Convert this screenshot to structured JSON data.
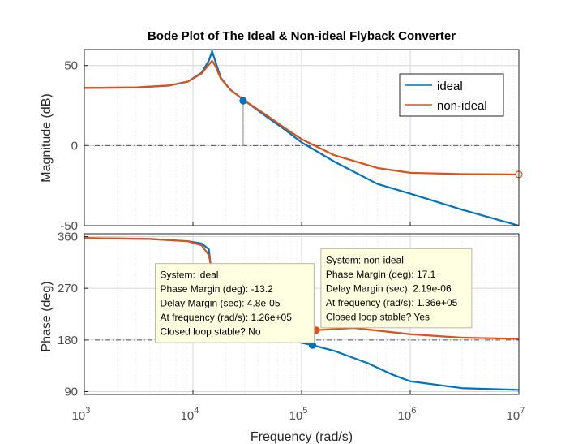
{
  "chart_data": {
    "type": "line",
    "title": "Bode Plot of The Ideal & Non-ideal Flyback Converter",
    "xlabel": "Frequency  (rad/s)",
    "xscale": "log",
    "xlim": [
      1000,
      10000000
    ],
    "x_tick_labels": [
      {
        "base": "10",
        "exp": "3",
        "value": 1000
      },
      {
        "base": "10",
        "exp": "4",
        "value": 10000
      },
      {
        "base": "10",
        "exp": "5",
        "value": 100000
      },
      {
        "base": "10",
        "exp": "6",
        "value": 1000000
      },
      {
        "base": "10",
        "exp": "7",
        "value": 10000000
      }
    ],
    "grid": true,
    "legend": {
      "placement": "top-right",
      "entries": [
        {
          "label": "ideal",
          "color": "#0072BD"
        },
        {
          "label": "non-ideal",
          "color": "#D95319"
        }
      ]
    },
    "panels": [
      {
        "id": "magnitude",
        "ylabel": "Magnitude (dB)",
        "ylim": [
          -50,
          60
        ],
        "yticks": [
          -50,
          0,
          50
        ],
        "y_tick_labels": [
          "-50",
          "0",
          "50"
        ],
        "reference_line": 0,
        "series": [
          {
            "name": "ideal",
            "color": "#0072BD",
            "points": [
              [
                1000,
                36
              ],
              [
                3000,
                36.3
              ],
              [
                6000,
                37.5
              ],
              [
                9000,
                40
              ],
              [
                12000,
                45.5
              ],
              [
                14000,
                53
              ],
              [
                15000,
                59
              ],
              [
                16000,
                53
              ],
              [
                18000,
                42.5
              ],
              [
                22000,
                35
              ],
              [
                30000,
                28
              ],
              [
                50000,
                17
              ],
              [
                70000,
                10
              ],
              [
                100000,
                2
              ],
              [
                200000,
                -10
              ],
              [
                500000,
                -24
              ],
              [
                1000000,
                -30
              ],
              [
                3000000,
                -40
              ],
              [
                10000000,
                -50
              ]
            ]
          },
          {
            "name": "non-ideal",
            "color": "#D95319",
            "points": [
              [
                1000,
                36
              ],
              [
                3000,
                36.3
              ],
              [
                6000,
                37.5
              ],
              [
                9000,
                40
              ],
              [
                12000,
                45
              ],
              [
                14000,
                50.5
              ],
              [
                15000,
                53
              ],
              [
                16000,
                50
              ],
              [
                18000,
                42
              ],
              [
                22000,
                35
              ],
              [
                30000,
                28
              ],
              [
                50000,
                18
              ],
              [
                70000,
                11
              ],
              [
                100000,
                4
              ],
              [
                200000,
                -6
              ],
              [
                500000,
                -14
              ],
              [
                1000000,
                -17
              ],
              [
                3000000,
                -17.8
              ],
              [
                10000000,
                -18
              ]
            ]
          }
        ],
        "markers": [
          {
            "x": 29000,
            "y": 28,
            "color": "#0072BD",
            "stem_to": 0
          },
          {
            "x": 10000000,
            "y": -18,
            "color": "#D95319",
            "hollow": true
          }
        ]
      },
      {
        "id": "phase",
        "ylabel": "Phase (deg)",
        "ylim": [
          85,
          365
        ],
        "yticks": [
          90,
          180,
          270,
          360
        ],
        "y_tick_labels": [
          "90",
          "180",
          "270",
          "360"
        ],
        "reference_line": 180,
        "series": [
          {
            "name": "ideal",
            "color": "#0072BD",
            "points": [
              [
                1000,
                357.5
              ],
              [
                4000,
                356
              ],
              [
                9000,
                352
              ],
              [
                12000,
                348
              ],
              [
                14000,
                338
              ],
              [
                15000,
                290
              ],
              [
                16000,
                222
              ],
              [
                18000,
                201
              ],
              [
                22000,
                193
              ],
              [
                30000,
                188
              ],
              [
                50000,
                184
              ],
              [
                80000,
                179
              ],
              [
                126000,
                171
              ],
              [
                200000,
                161
              ],
              [
                400000,
                140
              ],
              [
                700000,
                119
              ],
              [
                1000000,
                108
              ],
              [
                3000000,
                96
              ],
              [
                10000000,
                93
              ]
            ]
          },
          {
            "name": "non-ideal",
            "color": "#D95319",
            "points": [
              [
                1000,
                357.5
              ],
              [
                4000,
                356
              ],
              [
                9000,
                352
              ],
              [
                12000,
                345
              ],
              [
                14000,
                328
              ],
              [
                15000,
                300
              ],
              [
                16000,
                230
              ],
              [
                18000,
                210
              ],
              [
                22000,
                198
              ],
              [
                30000,
                192
              ],
              [
                60000,
                190
              ],
              [
                136000,
                197
              ],
              [
                300000,
                201
              ],
              [
                1000000,
                190
              ],
              [
                3000000,
                184
              ],
              [
                10000000,
                182
              ]
            ]
          }
        ],
        "markers": [
          {
            "x": 126000,
            "y": 171,
            "color": "#0072BD"
          },
          {
            "x": 136000,
            "y": 197,
            "color": "#D95319"
          }
        ]
      }
    ],
    "datatips": [
      {
        "panel": "phase",
        "marker_x": 126000,
        "marker_y": 171,
        "placement": "left",
        "lines": [
          "System: ideal",
          "Phase Margin (deg): -13.2",
          "Delay Margin (sec): 4.8e-05",
          "At frequency (rad/s): 1.26e+05",
          "Closed loop stable? No"
        ]
      },
      {
        "panel": "phase",
        "marker_x": 136000,
        "marker_y": 197,
        "placement": "right",
        "lines": [
          "System: non-ideal",
          "Phase Margin (deg): 17.1",
          "Delay Margin (sec): 2.19e-06",
          "At frequency (rad/s): 1.36e+05",
          "Closed loop stable? Yes"
        ]
      }
    ]
  }
}
